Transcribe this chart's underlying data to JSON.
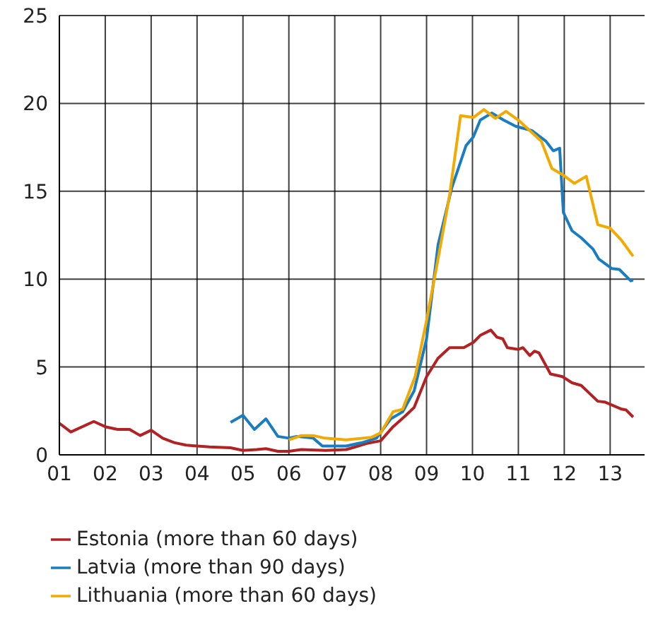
{
  "chart_data": {
    "type": "line",
    "xlim": [
      2001,
      2013.75
    ],
    "ylim": [
      0,
      25
    ],
    "yticks": [
      0,
      5,
      10,
      15,
      20,
      25
    ],
    "xticks": [
      {
        "value": 2001,
        "label": "01"
      },
      {
        "value": 2002,
        "label": "02"
      },
      {
        "value": 2003,
        "label": "03"
      },
      {
        "value": 2004,
        "label": "04"
      },
      {
        "value": 2005,
        "label": "05"
      },
      {
        "value": 2006,
        "label": "06"
      },
      {
        "value": 2007,
        "label": "07"
      },
      {
        "value": 2008,
        "label": "08"
      },
      {
        "value": 2009,
        "label": "09"
      },
      {
        "value": 2010,
        "label": "10"
      },
      {
        "value": 2011,
        "label": "11"
      },
      {
        "value": 2012,
        "label": "12"
      },
      {
        "value": 2013,
        "label": "13"
      }
    ],
    "grid": true,
    "legend": "bottom",
    "marker": "none",
    "line_style": "solid",
    "series": [
      {
        "name": "Estonia (more than 60 days)",
        "color": "#b22222",
        "x": [
          2001,
          2001.25,
          2001.75,
          2002,
          2002.27,
          2002.53,
          2002.76,
          2003,
          2003.25,
          2003.5,
          2003.76,
          2004,
          2004.27,
          2004.73,
          2005,
          2005.3,
          2005.5,
          2005.76,
          2006,
          2006.27,
          2006.8,
          2007.25,
          2007.7,
          2008,
          2008.27,
          2008.53,
          2008.73,
          2009,
          2009.25,
          2009.5,
          2009.81,
          2010.02,
          2010.17,
          2010.4,
          2010.53,
          2010.66,
          2010.76,
          2011,
          2011.1,
          2011.25,
          2011.35,
          2011.45,
          2011.7,
          2011.96,
          2012.17,
          2012.37,
          2012.73,
          2012.89,
          2013.25,
          2013.35,
          2013.5
        ],
        "values": [
          1.8,
          1.3,
          1.9,
          1.6,
          1.45,
          1.45,
          1.1,
          1.4,
          0.95,
          0.7,
          0.55,
          0.5,
          0.45,
          0.4,
          0.25,
          0.3,
          0.35,
          0.2,
          0.2,
          0.3,
          0.25,
          0.3,
          0.65,
          0.8,
          1.6,
          2.2,
          2.7,
          4.45,
          5.5,
          6.1,
          6.1,
          6.4,
          6.8,
          7.1,
          6.7,
          6.6,
          6.1,
          6,
          6.1,
          5.65,
          5.9,
          5.8,
          4.6,
          4.45,
          4.1,
          3.95,
          3.05,
          3,
          2.6,
          2.55,
          2.15
        ]
      },
      {
        "name": "Latvia (more than 90 days)",
        "color": "#1a7cc1",
        "x": [
          2004.73,
          2005,
          2005.25,
          2005.5,
          2005.76,
          2006,
          2006.17,
          2006.53,
          2006.73,
          2007.25,
          2007.6,
          2007.91,
          2008.22,
          2008.48,
          2008.73,
          2009,
          2009.25,
          2009.55,
          2009.86,
          2010.02,
          2010.17,
          2010.42,
          2010.68,
          2010.94,
          2011.3,
          2011.6,
          2011.76,
          2011.9,
          2011.98,
          2012.17,
          2012.37,
          2012.63,
          2012.75,
          2013.04,
          2013.2,
          2013.45,
          2013.5
        ],
        "values": [
          1.85,
          2.25,
          1.45,
          2.05,
          1.05,
          0.95,
          1.05,
          0.95,
          0.5,
          0.5,
          0.7,
          0.95,
          2.05,
          2.45,
          3.65,
          6.6,
          11.95,
          15.2,
          17.6,
          18.1,
          19.05,
          19.45,
          19.05,
          18.7,
          18.45,
          17.85,
          17.3,
          17.45,
          13.8,
          12.75,
          12.35,
          11.7,
          11.15,
          10.6,
          10.55,
          9.9,
          9.95
        ]
      },
      {
        "name": "Lithuania (more than 60 days)",
        "color": "#f2aa00",
        "x": [
          2006,
          2006.27,
          2006.53,
          2006.78,
          2007.25,
          2007.8,
          2008,
          2008.27,
          2008.48,
          2008.75,
          2009,
          2009.25,
          2009.5,
          2009.74,
          2010.02,
          2010.25,
          2010.5,
          2010.73,
          2011,
          2011.5,
          2011.73,
          2011.96,
          2012.22,
          2012.48,
          2012.73,
          2013,
          2013.25,
          2013.5
        ],
        "values": [
          0.85,
          1.1,
          1.1,
          0.95,
          0.85,
          1,
          1.25,
          2.45,
          2.6,
          4.45,
          7.65,
          11.15,
          14.75,
          19.3,
          19.2,
          19.65,
          19.15,
          19.55,
          19.05,
          17.85,
          16.3,
          15.95,
          15.45,
          15.85,
          13.1,
          12.9,
          12.2,
          11.3
        ]
      }
    ]
  }
}
